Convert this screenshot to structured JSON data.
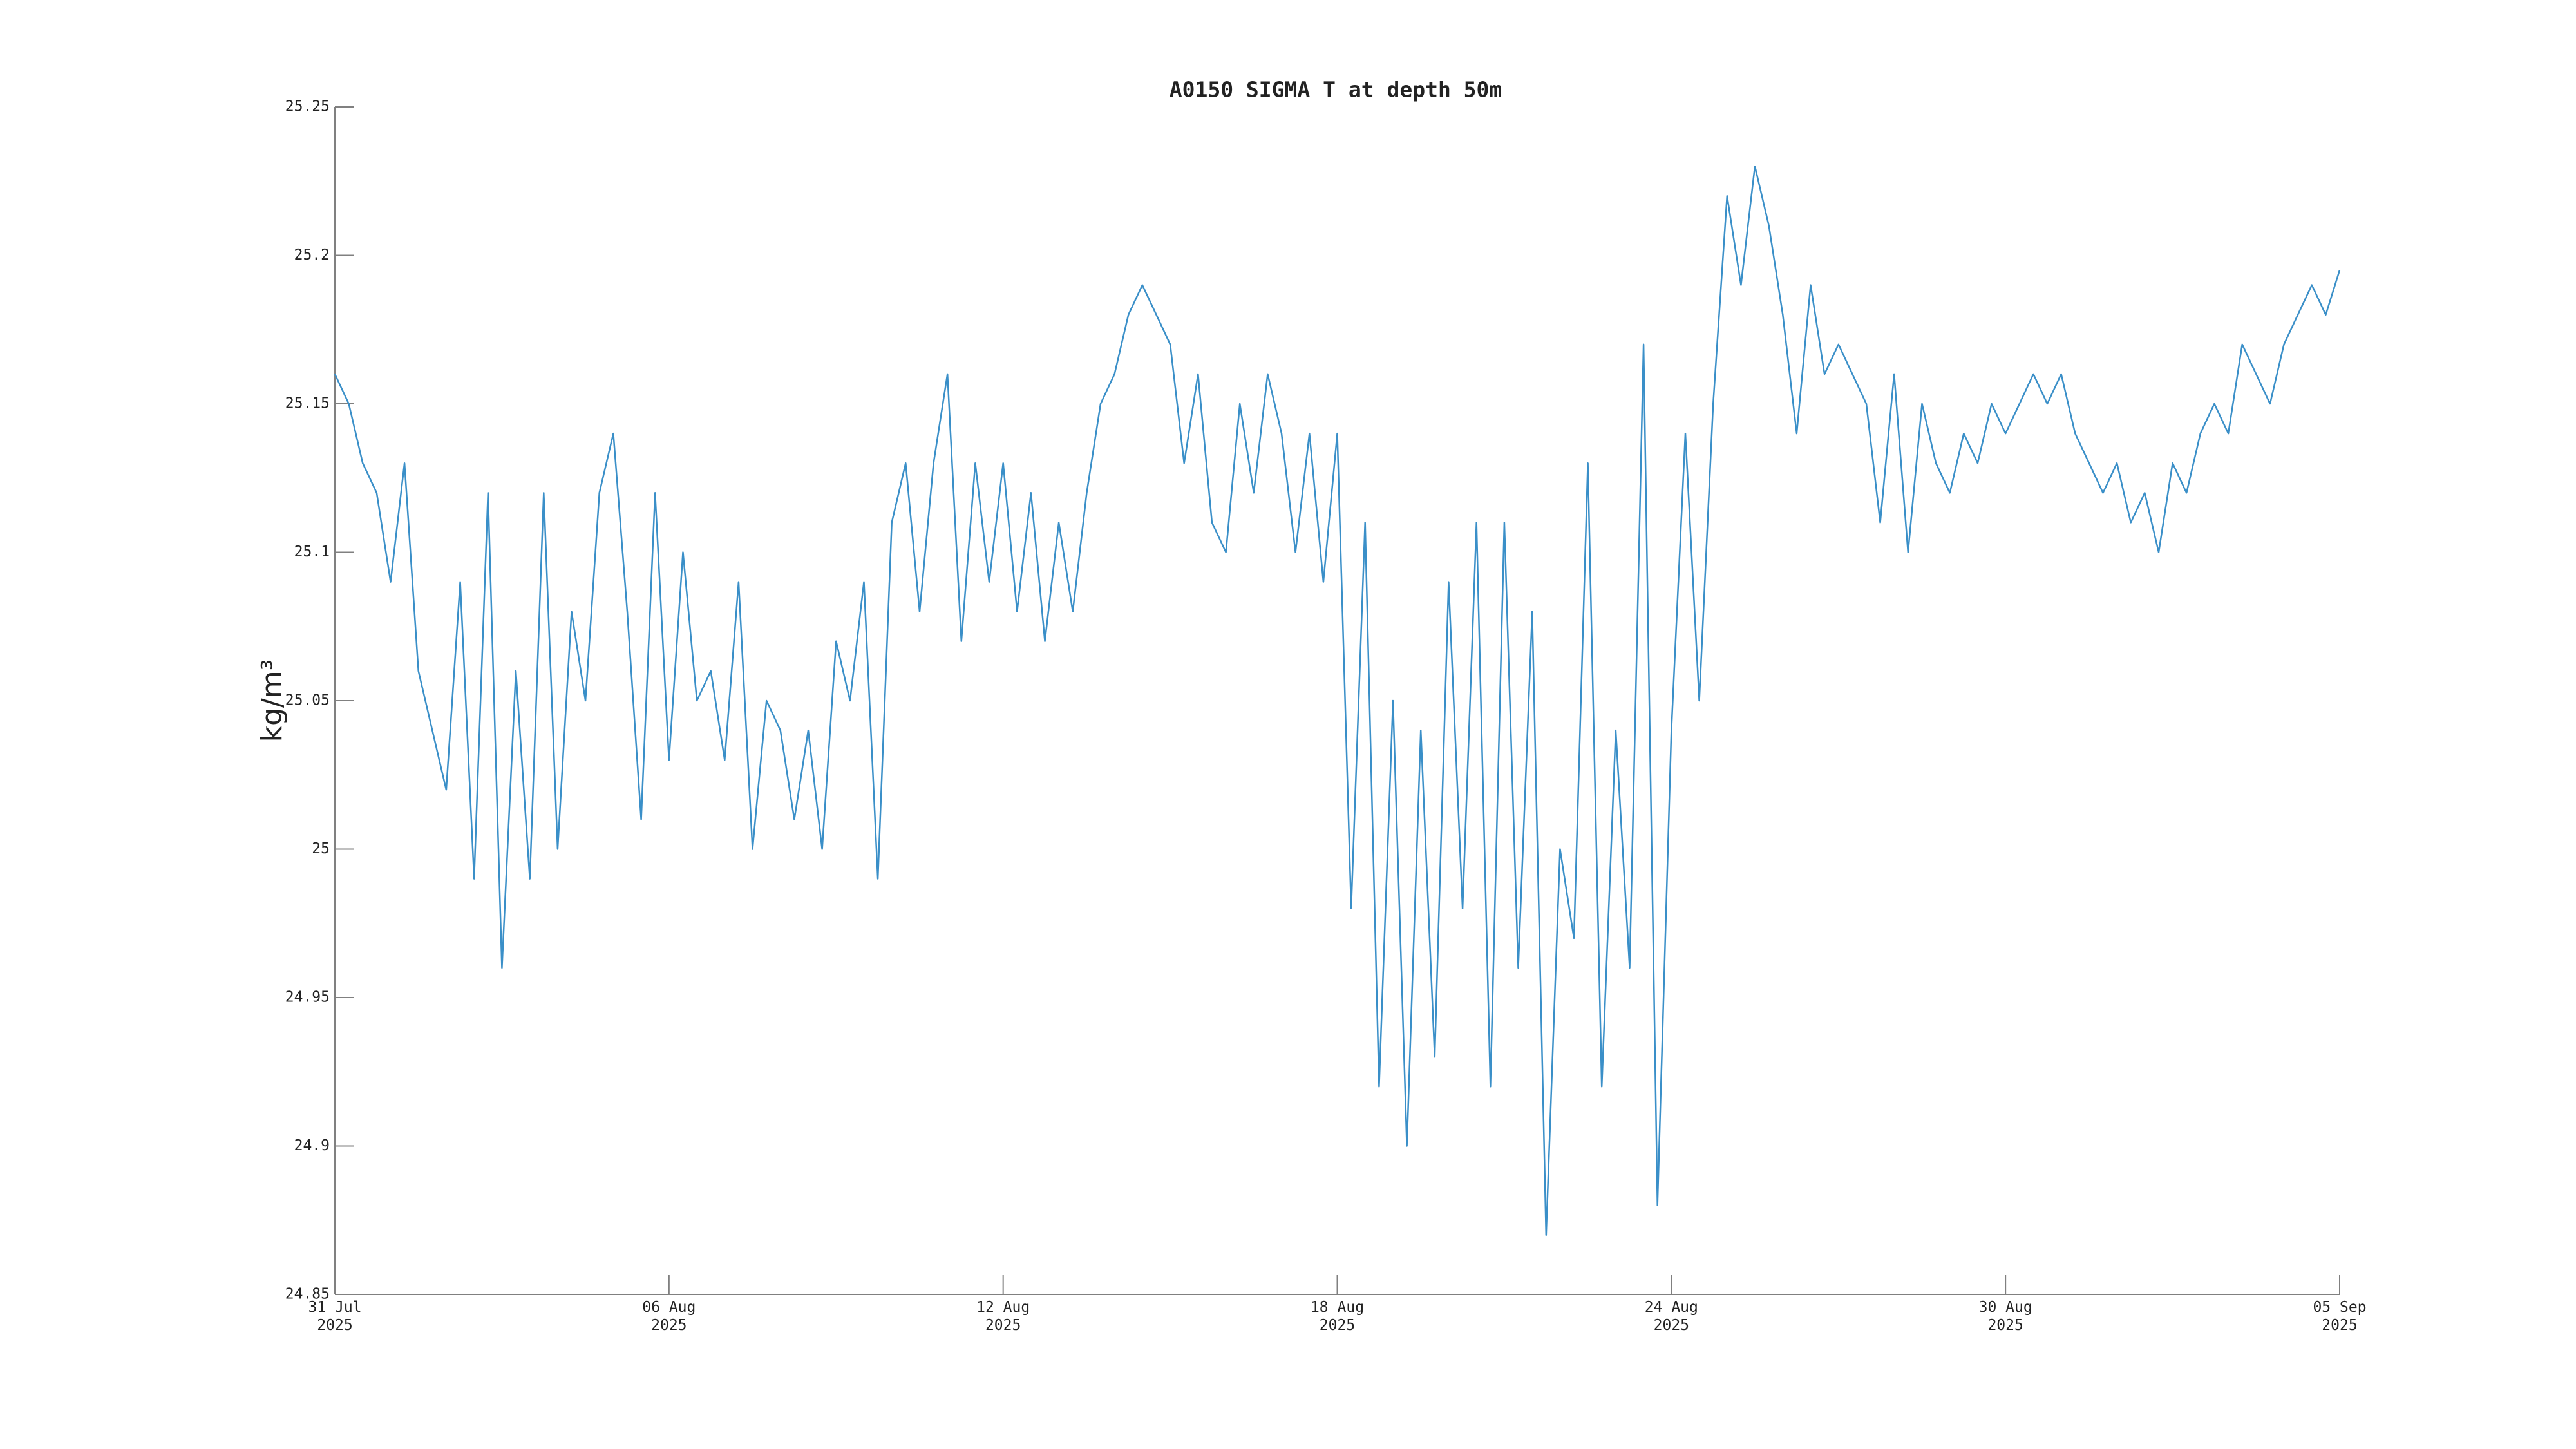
{
  "chart_data": {
    "type": "line",
    "title": "A0150 SIGMA T at depth 50m",
    "ylabel": "kg/m³",
    "color": "#3a8fc8",
    "x": [
      0,
      0.25,
      0.5,
      0.75,
      1,
      1.25,
      1.5,
      1.75,
      2,
      2.25,
      2.5,
      2.75,
      3,
      3.25,
      3.5,
      3.75,
      4,
      4.25,
      4.5,
      4.75,
      5,
      5.25,
      5.5,
      5.75,
      6,
      6.25,
      6.5,
      6.75,
      7,
      7.25,
      7.5,
      7.75,
      8,
      8.25,
      8.5,
      8.75,
      9,
      9.25,
      9.5,
      9.75,
      10,
      10.25,
      10.5,
      10.75,
      11,
      11.25,
      11.5,
      11.75,
      12,
      12.25,
      12.5,
      12.75,
      13,
      13.25,
      13.5,
      13.75,
      14,
      14.25,
      14.5,
      14.75,
      15,
      15.25,
      15.5,
      15.75,
      16,
      16.25,
      16.5,
      16.75,
      17,
      17.25,
      17.5,
      17.75,
      18,
      18.25,
      18.5,
      18.75,
      19,
      19.25,
      19.5,
      19.75,
      20,
      20.25,
      20.5,
      20.75,
      21,
      21.25,
      21.5,
      21.75,
      22,
      22.25,
      22.5,
      22.75,
      23,
      23.25,
      23.5,
      23.75,
      24,
      24.25,
      24.5,
      24.75,
      25,
      25.25,
      25.5,
      25.75,
      26,
      26.25,
      26.5,
      26.75,
      27,
      27.25,
      27.5,
      27.75,
      28,
      28.25,
      28.5,
      28.75,
      29,
      29.25,
      29.5,
      29.75,
      30,
      30.25,
      30.5,
      30.75,
      31,
      31.25,
      31.5,
      31.75,
      32,
      32.25,
      32.5,
      32.75,
      33,
      33.25,
      33.5,
      33.75,
      34,
      34.25,
      34.5,
      34.75,
      35,
      35.25,
      35.5,
      35.75,
      36
    ],
    "values": [
      25.16,
      25.15,
      25.13,
      25.12,
      25.09,
      25.13,
      25.06,
      25.04,
      25.02,
      25.09,
      24.99,
      25.12,
      24.96,
      25.06,
      24.99,
      25.12,
      25.0,
      25.08,
      25.05,
      25.12,
      25.14,
      25.08,
      25.01,
      25.12,
      25.03,
      25.1,
      25.05,
      25.06,
      25.03,
      25.09,
      25.0,
      25.05,
      25.04,
      25.01,
      25.04,
      25.0,
      25.07,
      25.05,
      25.09,
      24.99,
      25.11,
      25.13,
      25.08,
      25.13,
      25.16,
      25.07,
      25.13,
      25.09,
      25.13,
      25.08,
      25.12,
      25.07,
      25.11,
      25.08,
      25.12,
      25.15,
      25.16,
      25.18,
      25.19,
      25.18,
      25.17,
      25.13,
      25.16,
      25.11,
      25.1,
      25.15,
      25.12,
      25.16,
      25.14,
      25.1,
      25.14,
      25.09,
      25.14,
      24.98,
      25.11,
      24.92,
      25.05,
      24.9,
      25.04,
      24.93,
      25.09,
      24.98,
      25.11,
      24.92,
      25.11,
      24.96,
      25.08,
      24.87,
      25.0,
      24.97,
      25.13,
      24.92,
      25.04,
      24.96,
      25.17,
      24.88,
      25.04,
      25.14,
      25.05,
      25.15,
      25.22,
      25.19,
      25.23,
      25.21,
      25.18,
      25.14,
      25.19,
      25.16,
      25.17,
      25.16,
      25.15,
      25.11,
      25.16,
      25.1,
      25.15,
      25.13,
      25.12,
      25.14,
      25.13,
      25.15,
      25.14,
      25.15,
      25.16,
      25.15,
      25.16,
      25.14,
      25.13,
      25.12,
      25.13,
      25.11,
      25.12,
      25.1,
      25.13,
      25.12,
      25.14,
      25.15,
      25.14,
      25.17,
      25.16,
      25.15,
      25.17,
      25.18,
      25.19,
      25.18,
      25.195
    ],
    "xlim": [
      0,
      36
    ],
    "xticks": [
      {
        "value": 0,
        "label": "31 Jul\n2025"
      },
      {
        "value": 6,
        "label": "06 Aug\n2025"
      },
      {
        "value": 12,
        "label": "12 Aug\n2025"
      },
      {
        "value": 18,
        "label": "18 Aug\n2025"
      },
      {
        "value": 24,
        "label": "24 Aug\n2025"
      },
      {
        "value": 30,
        "label": "30 Aug\n2025"
      },
      {
        "value": 36,
        "label": "05 Sep\n2025"
      }
    ],
    "ylim": [
      24.85,
      25.25
    ],
    "yticks": [
      24.85,
      24.9,
      24.95,
      25,
      25.05,
      25.1,
      25.15,
      25.2,
      25.25
    ]
  }
}
